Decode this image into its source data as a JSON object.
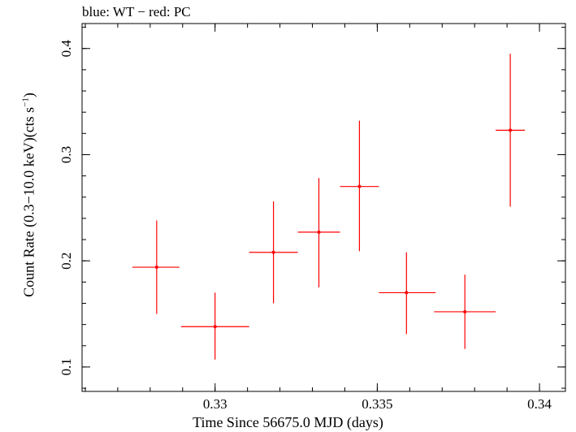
{
  "chart_data": {
    "type": "scatter",
    "title": "blue: WT − red: PC",
    "xlabel": "Time Since 56675.0 MJD (days)",
    "ylabel": {
      "main": "Count Rate (0.3−10.0 keV)(cts s",
      "sup": "−1",
      "close": ")"
    },
    "xlim": [
      0.3259,
      0.3408
    ],
    "ylim": [
      0.077,
      0.4235
    ],
    "x_major_ticks": [
      0.33,
      0.335,
      0.34
    ],
    "x_tick_labels": [
      "0.33",
      "0.335",
      "0.34"
    ],
    "x_minor_step": 0.001,
    "y_major_ticks": [
      0.1,
      0.2,
      0.3,
      0.4
    ],
    "y_tick_labels": [
      "0.1",
      "0.2",
      "0.3",
      "0.4"
    ],
    "y_minor_step": 0.02,
    "grid": false,
    "colors": {
      "PC": "#ff0000",
      "WT": "#0000ff",
      "axis": "#000000"
    },
    "series": [
      {
        "name": "PC",
        "color": "#ff0000",
        "points": [
          {
            "x": 0.3282,
            "xerr_lo": 0.00075,
            "xerr_hi": 0.0007,
            "y": 0.194,
            "yerr_lo": 0.044,
            "yerr_hi": 0.044
          },
          {
            "x": 0.33,
            "xerr_lo": 0.00105,
            "xerr_hi": 0.00105,
            "y": 0.138,
            "yerr_lo": 0.031,
            "yerr_hi": 0.032
          },
          {
            "x": 0.3318,
            "xerr_lo": 0.00075,
            "xerr_hi": 0.00075,
            "y": 0.208,
            "yerr_lo": 0.048,
            "yerr_hi": 0.048
          },
          {
            "x": 0.3332,
            "xerr_lo": 0.00065,
            "xerr_hi": 0.00065,
            "y": 0.227,
            "yerr_lo": 0.052,
            "yerr_hi": 0.051
          },
          {
            "x": 0.33445,
            "xerr_lo": 0.0006,
            "xerr_hi": 0.0006,
            "y": 0.27,
            "yerr_lo": 0.061,
            "yerr_hi": 0.062
          },
          {
            "x": 0.3359,
            "xerr_lo": 0.00085,
            "xerr_hi": 0.0009,
            "y": 0.17,
            "yerr_lo": 0.039,
            "yerr_hi": 0.038
          },
          {
            "x": 0.3377,
            "xerr_lo": 0.00095,
            "xerr_hi": 0.00095,
            "y": 0.152,
            "yerr_lo": 0.035,
            "yerr_hi": 0.035
          },
          {
            "x": 0.3391,
            "xerr_lo": 0.00045,
            "xerr_hi": 0.00045,
            "y": 0.323,
            "yerr_lo": 0.072,
            "yerr_hi": 0.072
          }
        ]
      }
    ]
  }
}
